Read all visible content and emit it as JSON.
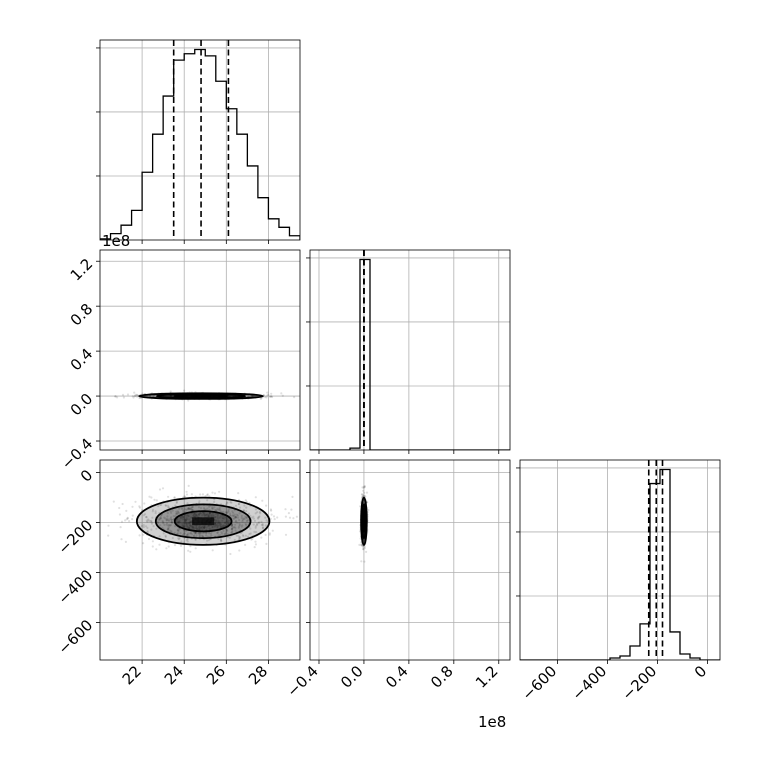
{
  "chart_data": {
    "type": "corner",
    "parameters": [
      {
        "index": 0,
        "range": [
          20,
          29.5
        ],
        "ticks": [
          22,
          24,
          26,
          28
        ],
        "tick_labels": [
          "22",
          "24",
          "26",
          "28"
        ],
        "offset_label": ""
      },
      {
        "index": 1,
        "range": [
          -0.48,
          1.3
        ],
        "ticks": [
          -0.4,
          0.0,
          0.4,
          0.8,
          1.2
        ],
        "tick_labels": [
          "−0.4",
          "0.0",
          "0.4",
          "0.8",
          "1.2"
        ],
        "offset_label": "1e8"
      },
      {
        "index": 2,
        "range": [
          -750,
          50
        ],
        "ticks": [
          -600,
          -400,
          -200,
          0
        ],
        "tick_labels": [
          "−600",
          "−400",
          "−200",
          "0"
        ],
        "offset_label": ""
      }
    ],
    "histograms": [
      {
        "param": 0,
        "bin_edges": [
          20,
          20.5,
          21,
          21.5,
          22,
          22.5,
          23,
          23.5,
          24,
          24.5,
          25,
          25.5,
          26,
          26.5,
          27,
          27.5,
          28,
          28.5,
          29,
          29.5
        ],
        "counts": [
          0.5,
          3,
          7,
          14,
          32,
          50,
          68,
          85,
          88,
          90,
          87,
          75,
          62,
          50,
          35,
          20,
          10,
          6,
          2
        ],
        "quantiles": [
          23.5,
          24.8,
          26.1
        ]
      },
      {
        "param": 1,
        "bin_edges": [
          -0.48,
          -0.391,
          -0.302,
          -0.213,
          -0.124,
          -0.035,
          0.054,
          0.143,
          0.232,
          0.321,
          0.41,
          0.499,
          0.588,
          0.677,
          0.766,
          0.855,
          0.944,
          1.033,
          1.122,
          1.211,
          1.3
        ],
        "counts": [
          0,
          0,
          0,
          0,
          1,
          100,
          0,
          0,
          0,
          0,
          0,
          0,
          0,
          0,
          0,
          0,
          0,
          0,
          0,
          0
        ],
        "quantiles": [
          0.0,
          0.0,
          0.0
        ]
      },
      {
        "param": 2,
        "bin_edges": [
          -750,
          -710,
          -670,
          -630,
          -590,
          -550,
          -510,
          -470,
          -430,
          -390,
          -350,
          -310,
          -270,
          -230,
          -190,
          -150,
          -110,
          -70,
          -30,
          10,
          50
        ],
        "counts": [
          0,
          0,
          0,
          0,
          0,
          0,
          0,
          0,
          0,
          1,
          2,
          7,
          18,
          88,
          95,
          14,
          3,
          1,
          0,
          0
        ],
        "quantiles": [
          -235,
          -205,
          -180
        ]
      }
    ],
    "panels_2d": [
      {
        "x_param": 0,
        "y_param": 1,
        "center": [
          24.8,
          0.0
        ],
        "spread": [
          1.4,
          0.012
        ]
      },
      {
        "x_param": 0,
        "y_param": 2,
        "center": [
          24.9,
          -195
        ],
        "spread": [
          1.5,
          45
        ]
      },
      {
        "x_param": 1,
        "y_param": 2,
        "center": [
          0.0,
          -195
        ],
        "spread": [
          0.012,
          45
        ]
      }
    ]
  }
}
